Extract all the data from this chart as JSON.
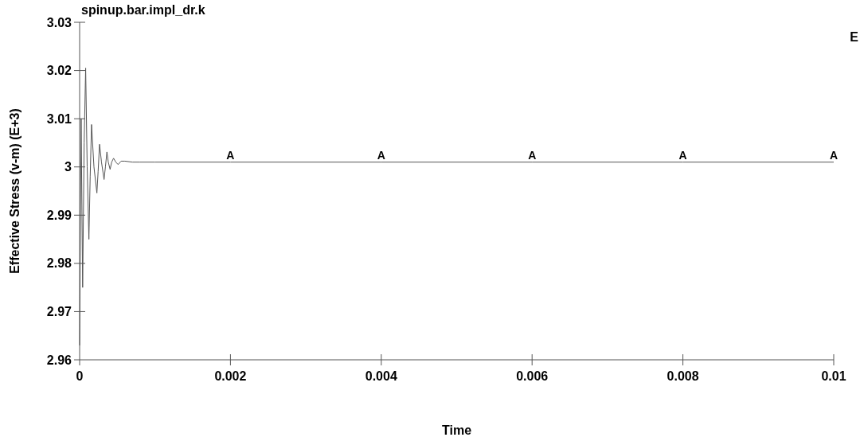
{
  "chart_data": {
    "type": "line",
    "title": "spinup.bar.impl_dr.k",
    "xlabel": "Time",
    "ylabel": "Effective Stress (v-m) (E+3)",
    "xlim": [
      0,
      0.01
    ],
    "ylim": [
      2.96,
      3.03
    ],
    "xticks": [
      0,
      0.002,
      0.004,
      0.006,
      0.008,
      0.01
    ],
    "yticks": [
      2.96,
      2.97,
      2.98,
      2.99,
      3,
      3.01,
      3.02,
      3.03
    ],
    "series": [
      {
        "color": "#555555",
        "x": [
          0,
          2e-05,
          4e-05,
          6e-05,
          8e-05,
          0.0001,
          0.000123,
          0.00014,
          0.000158,
          0.00019,
          0.000229,
          0.000245,
          0.000264,
          0.00029,
          0.000324,
          0.000342,
          0.000362,
          0.00038,
          0.000404,
          0.000425,
          0.00045,
          0.00048,
          0.00051,
          0.00055,
          0.0006,
          0.0007,
          0.0008,
          0.001,
          0.002,
          0.004,
          0.006,
          0.008,
          0.01
        ],
        "values": [
          2.963,
          3.01,
          2.975,
          3.005,
          3.0205,
          3.0,
          2.985,
          2.998,
          3.0088,
          3.0,
          2.9946,
          2.999,
          3.0047,
          3.001,
          2.9974,
          3.0,
          3.0031,
          3.001,
          2.9995,
          3.001,
          3.0018,
          3.001,
          3.0005,
          3.0012,
          3.0012,
          3.001,
          3.001,
          3.001,
          3.001,
          3.001,
          3.001,
          3.001,
          3.001
        ]
      }
    ],
    "annotations": [
      {
        "text": "A",
        "x": 0.002,
        "y": 3.001
      },
      {
        "text": "A",
        "x": 0.004,
        "y": 3.001
      },
      {
        "text": "A",
        "x": 0.006,
        "y": 3.001
      },
      {
        "text": "A",
        "x": 0.008,
        "y": 3.001
      },
      {
        "text": "A",
        "x": 0.01,
        "y": 3.001
      },
      "E"
    ],
    "grid": false
  }
}
